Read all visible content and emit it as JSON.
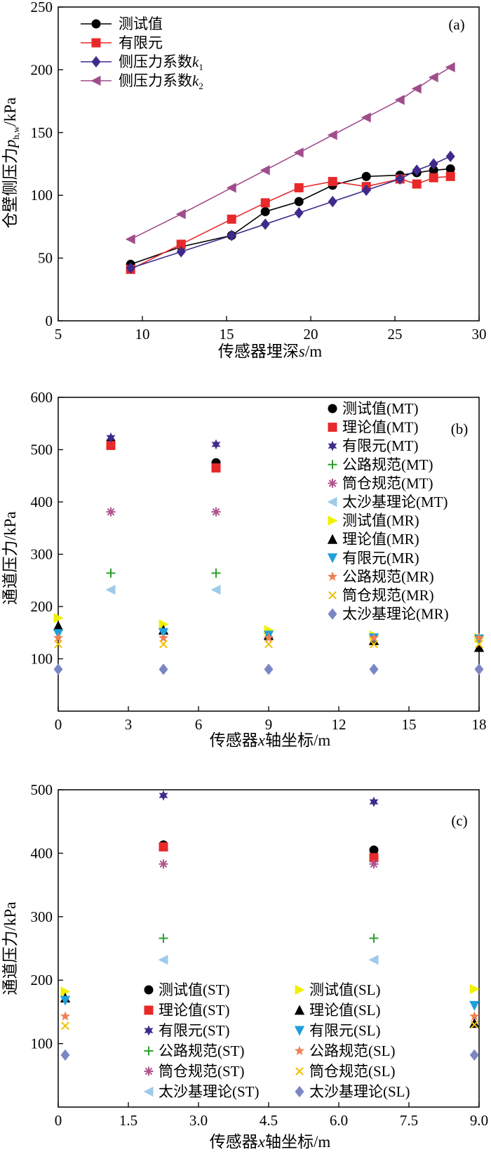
{
  "chart_data": [
    {
      "type": "line",
      "panel_label": "(a)",
      "xlabel": "传感器埋深s/m",
      "ylabel": "仓壁侧压力p_h,w/kPa",
      "xlim": [
        5,
        30
      ],
      "ylim": [
        0,
        250
      ],
      "xticks": [
        "5",
        "10",
        "15",
        "20",
        "25",
        "30"
      ],
      "yticks": [
        "0",
        "50",
        "100",
        "150",
        "200",
        "250"
      ],
      "legend_position": "top-left",
      "series": [
        {
          "name": "测试值",
          "marker": "circle",
          "color": "#000000",
          "x": [
            9.3,
            12.3,
            15.3,
            17.3,
            19.3,
            21.3,
            23.3,
            25.3,
            26.3,
            27.3,
            28.3
          ],
          "y": [
            45,
            59,
            68,
            87,
            95,
            108,
            115,
            116,
            118,
            120,
            121
          ]
        },
        {
          "name": "有限元",
          "marker": "square",
          "color": "#e8292a",
          "x": [
            9.3,
            12.3,
            15.3,
            17.3,
            19.3,
            21.3,
            23.3,
            25.3,
            26.3,
            27.3,
            28.3
          ],
          "y": [
            41,
            61,
            81,
            94,
            106,
            111,
            107,
            113,
            109,
            114,
            115
          ]
        },
        {
          "name": "侧压力系数k1",
          "marker": "diamond",
          "color": "#3f2a8c",
          "x": [
            9.3,
            12.3,
            15.3,
            17.3,
            19.3,
            21.3,
            23.3,
            25.3,
            26.3,
            27.3,
            28.3
          ],
          "y": [
            42,
            55,
            68,
            77,
            86,
            95,
            104,
            113,
            120,
            125,
            131
          ]
        },
        {
          "name": "侧压力系数k2",
          "marker": "triangle-left",
          "color": "#a04d8c",
          "x": [
            9.3,
            12.3,
            15.3,
            17.3,
            19.3,
            21.3,
            23.3,
            25.3,
            26.3,
            27.3,
            28.3
          ],
          "y": [
            65,
            85,
            106,
            120,
            134,
            148,
            162,
            176,
            185,
            194,
            202
          ]
        }
      ]
    },
    {
      "type": "scatter",
      "panel_label": "(b)",
      "xlabel": "传感器x轴坐标/m",
      "ylabel": "通道压力/kPa",
      "xlim": [
        0,
        18
      ],
      "ylim": [
        0,
        600
      ],
      "xticks": [
        "0",
        "3",
        "6",
        "9",
        "12",
        "15",
        "18"
      ],
      "yticks": [
        "100",
        "200",
        "300",
        "400",
        "500",
        "600"
      ],
      "legend_position": "right",
      "series": [
        {
          "name": "测试值(MT)",
          "marker": "circle",
          "color": "#000000",
          "x": [
            2.25,
            6.75
          ],
          "y": [
            515,
            475
          ]
        },
        {
          "name": "理论值(MT)",
          "marker": "square",
          "color": "#e8292a",
          "x": [
            2.25,
            6.75
          ],
          "y": [
            508,
            465
          ]
        },
        {
          "name": "有限元(MT)",
          "marker": "star6",
          "color": "#3f2a8c",
          "x": [
            2.25,
            6.75
          ],
          "y": [
            523,
            510
          ]
        },
        {
          "name": "公路规范(MT)",
          "marker": "plus",
          "color": "#2ca02c",
          "x": [
            2.25,
            6.75
          ],
          "y": [
            264,
            264
          ]
        },
        {
          "name": "筒仓规范(MT)",
          "marker": "asterisk",
          "color": "#b0548f",
          "x": [
            2.25,
            6.75
          ],
          "y": [
            381,
            381
          ]
        },
        {
          "name": "太沙基理论(MT)",
          "marker": "triangle-left",
          "color": "#9ecbe8",
          "x": [
            2.25,
            6.75
          ],
          "y": [
            232,
            232
          ]
        },
        {
          "name": "测试值(MR)",
          "marker": "triangle-right",
          "color": "#f0f000",
          "x": [
            0,
            4.5,
            9,
            13.5,
            18
          ],
          "y": [
            178,
            166,
            155,
            145,
            140
          ]
        },
        {
          "name": "理论值(MR)",
          "marker": "triangle-up",
          "color": "#000000",
          "x": [
            0,
            4.5,
            9,
            13.5,
            18
          ],
          "y": [
            163,
            155,
            145,
            135,
            122
          ]
        },
        {
          "name": "有限元(MR)",
          "marker": "triangle-down",
          "color": "#1ea0dc",
          "x": [
            0,
            4.5,
            9,
            13.5,
            18
          ],
          "y": [
            148,
            150,
            145,
            140,
            138
          ]
        },
        {
          "name": "公路规范(MR)",
          "marker": "star5",
          "color": "#f08050",
          "x": [
            0,
            4.5,
            9,
            13.5,
            18
          ],
          "y": [
            140,
            140,
            140,
            140,
            140
          ]
        },
        {
          "name": "筒仓规范(MR)",
          "marker": "cross",
          "color": "#f0c000",
          "x": [
            0,
            4.5,
            9,
            13.5,
            18
          ],
          "y": [
            128,
            128,
            128,
            128,
            128
          ]
        },
        {
          "name": "太沙基理论(MR)",
          "marker": "diamond",
          "color": "#7b86c4",
          "x": [
            0,
            4.5,
            9,
            13.5,
            18
          ],
          "y": [
            80,
            80,
            80,
            80,
            80
          ]
        }
      ]
    },
    {
      "type": "scatter",
      "panel_label": "(c)",
      "xlabel": "传感器x轴坐标/m",
      "ylabel": "通道压力/kPa",
      "xlim": [
        0,
        9
      ],
      "ylim": [
        0,
        500
      ],
      "xticks": [
        "0",
        "1.5",
        "3.0",
        "4.5",
        "6.0",
        "7.5",
        "9.0"
      ],
      "yticks": [
        "100",
        "200",
        "300",
        "400",
        "500"
      ],
      "legend_position": "bottom",
      "series": [
        {
          "name": "测试值(ST)",
          "marker": "circle",
          "color": "#000000",
          "x": [
            2.25,
            6.75
          ],
          "y": [
            413,
            405
          ]
        },
        {
          "name": "测试值(SL)",
          "marker": "triangle-right",
          "color": "#f0f000",
          "x": [
            0.15,
            8.9
          ],
          "y": [
            182,
            186
          ]
        },
        {
          "name": "理论值(ST)",
          "marker": "square",
          "color": "#e8292a",
          "x": [
            2.25,
            6.75
          ],
          "y": [
            410,
            393
          ]
        },
        {
          "name": "理论值(SL)",
          "marker": "triangle-up",
          "color": "#000000",
          "x": [
            0.15,
            8.9
          ],
          "y": [
            172,
            132
          ]
        },
        {
          "name": "有限元(ST)",
          "marker": "star6",
          "color": "#3f2a8c",
          "x": [
            2.25,
            6.75
          ],
          "y": [
            491,
            481
          ]
        },
        {
          "name": "有限元(SL)",
          "marker": "triangle-down",
          "color": "#1ea0dc",
          "x": [
            0.15,
            8.9
          ],
          "y": [
            168,
            160
          ]
        },
        {
          "name": "公路规范(ST)",
          "marker": "plus",
          "color": "#2ca02c",
          "x": [
            2.25,
            6.75
          ],
          "y": [
            266,
            266
          ]
        },
        {
          "name": "公路规范(SL)",
          "marker": "star5",
          "color": "#f08050",
          "x": [
            0.15,
            8.9
          ],
          "y": [
            143,
            143
          ]
        },
        {
          "name": "筒仓规范(ST)",
          "marker": "asterisk",
          "color": "#b0548f",
          "x": [
            2.25,
            6.75
          ],
          "y": [
            383,
            383
          ]
        },
        {
          "name": "筒仓规范(SL)",
          "marker": "cross",
          "color": "#f0c000",
          "x": [
            0.15,
            8.9
          ],
          "y": [
            128,
            130
          ]
        },
        {
          "name": "太沙基理论(ST)",
          "marker": "triangle-left",
          "color": "#9ecbe8",
          "x": [
            2.25,
            6.75
          ],
          "y": [
            232,
            232
          ]
        },
        {
          "name": "太沙基理论(SL)",
          "marker": "diamond",
          "color": "#7b86c4",
          "x": [
            0.15,
            8.9
          ],
          "y": [
            82,
            82
          ]
        }
      ]
    }
  ]
}
